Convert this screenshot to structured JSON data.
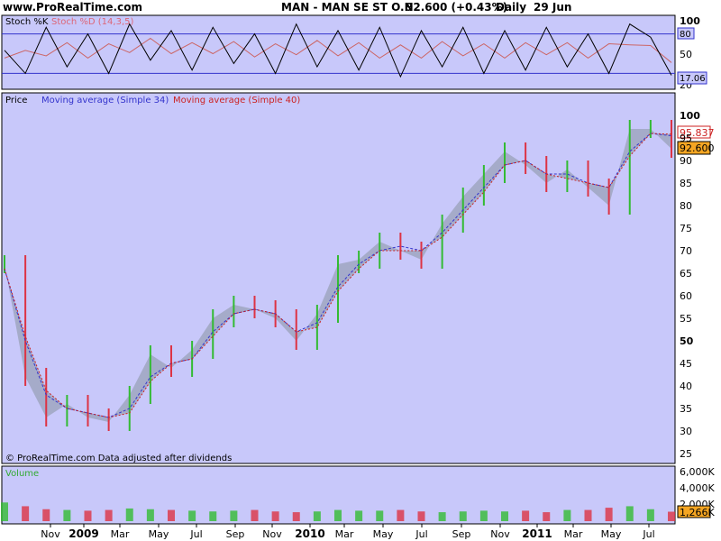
{
  "header": {
    "site": "www.ProRealTime.com",
    "instrument": "MAN - MAN SE ST O.N.",
    "last": "92.600 (+0.43%)",
    "period": "Daily",
    "date": "29 Jun"
  },
  "colors": {
    "panel_bg": "#c8c8fa",
    "up_bar": "#33bb33",
    "down_bar": "#dd3344",
    "ma34": "#3333cc",
    "ma40": "#cc2222",
    "stoch_k": "#000000",
    "stoch_d": "#cc6666",
    "band_line": "#3333cc",
    "volume_label": "#33aa33"
  },
  "stoch_panel": {
    "label_k": "Stoch %K",
    "label_d": "Stoch %D (14,3,5)",
    "ticks": [
      "100",
      "50",
      "20"
    ],
    "band_high": "80",
    "band_low": "20",
    "last_value": "17.06"
  },
  "price_panel": {
    "label_price": "Price",
    "label_ma34": "Moving average (Simple 34)",
    "label_ma40": "Moving average (Simple 40)",
    "ticks": [
      "100",
      "95",
      "90",
      "85",
      "80",
      "75",
      "70",
      "65",
      "60",
      "55",
      "50",
      "45",
      "40",
      "35",
      "30",
      "25"
    ],
    "last_ma": "95.837",
    "last_price": "92.600",
    "footer": "© ProRealTime.com  Data adjusted after dividends"
  },
  "volume_panel": {
    "label": "Volume",
    "ticks": [
      "6,000K",
      "4,000K",
      "2,000K"
    ],
    "last_value": "1,266K"
  },
  "x_axis": [
    "Nov",
    "2009",
    "Mar",
    "May",
    "Jul",
    "Sep",
    "Nov",
    "2010",
    "Mar",
    "May",
    "Jul",
    "Sep",
    "Nov",
    "2011",
    "Mar",
    "May",
    "Jul"
  ],
  "chart_data": [
    {
      "type": "line",
      "title": "Stoch %K / Stoch %D (14,3,5)",
      "ylim": [
        0,
        100
      ],
      "x": [
        "2008-10",
        "2008-11",
        "2008-12",
        "2009-01",
        "2009-02",
        "2009-03",
        "2009-04",
        "2009-05",
        "2009-06",
        "2009-07",
        "2009-08",
        "2009-09",
        "2009-10",
        "2009-11",
        "2009-12",
        "2010-01",
        "2010-02",
        "2010-03",
        "2010-04",
        "2010-05",
        "2010-06",
        "2010-07",
        "2010-08",
        "2010-09",
        "2010-10",
        "2010-11",
        "2010-12",
        "2011-01",
        "2011-02",
        "2011-03",
        "2011-04",
        "2011-05",
        "2011-06"
      ],
      "series": [
        {
          "name": "Stoch %K",
          "values": [
            55,
            20,
            90,
            30,
            80,
            20,
            95,
            40,
            85,
            25,
            90,
            35,
            80,
            20,
            95,
            30,
            85,
            25,
            90,
            15,
            85,
            30,
            90,
            20,
            85,
            25,
            90,
            30,
            80,
            20,
            95,
            75,
            17.06
          ]
        }
      ],
      "reference_lines": [
        80,
        20
      ]
    },
    {
      "type": "line",
      "title": "MAN - MAN SE ST O.N. Daily",
      "ylim": [
        25,
        102
      ],
      "x": [
        "2008-10",
        "2008-11",
        "2008-12",
        "2009-01",
        "2009-02",
        "2009-03",
        "2009-04",
        "2009-05",
        "2009-06",
        "2009-07",
        "2009-08",
        "2009-09",
        "2009-10",
        "2009-11",
        "2009-12",
        "2010-01",
        "2010-02",
        "2010-03",
        "2010-04",
        "2010-05",
        "2010-06",
        "2010-07",
        "2010-08",
        "2010-09",
        "2010-10",
        "2010-11",
        "2010-12",
        "2011-01",
        "2011-02",
        "2011-03",
        "2011-04",
        "2011-05",
        "2011-06"
      ],
      "series": [
        {
          "name": "Price",
          "values": [
            67,
            42,
            33,
            36,
            33,
            32,
            38,
            47,
            44,
            48,
            55,
            58,
            57,
            55,
            50,
            56,
            67,
            68,
            72,
            70,
            68,
            76,
            82,
            87,
            92,
            89,
            85,
            88,
            84,
            80,
            97,
            97,
            92.6
          ]
        },
        {
          "name": "Moving average (Simple 34)",
          "values": [
            66,
            50,
            38,
            35,
            34,
            33,
            35,
            42,
            45,
            46,
            52,
            56,
            57,
            56,
            52,
            54,
            62,
            67,
            70,
            71,
            70,
            74,
            79,
            84,
            89,
            90,
            87,
            87,
            85,
            84,
            92,
            96,
            95.5
          ]
        },
        {
          "name": "Moving average (Simple 40)",
          "values": [
            66,
            51,
            39,
            35,
            34,
            33,
            34,
            41,
            45,
            46,
            51,
            56,
            57,
            56,
            52,
            53,
            61,
            66,
            70,
            70,
            70,
            73,
            78,
            83,
            89,
            90,
            87,
            86,
            85,
            84,
            91,
            96,
            95.837
          ]
        }
      ]
    },
    {
      "type": "bar",
      "title": "Volume",
      "ylim": [
        0,
        7000
      ],
      "unit": "K",
      "categories": [
        "2008-10",
        "2008-11",
        "2008-12",
        "2009-01",
        "2009-02",
        "2009-03",
        "2009-04",
        "2009-05",
        "2009-06",
        "2009-07",
        "2009-08",
        "2009-09",
        "2009-10",
        "2009-11",
        "2009-12",
        "2010-01",
        "2010-02",
        "2010-03",
        "2010-04",
        "2010-05",
        "2010-06",
        "2010-07",
        "2010-08",
        "2010-09",
        "2010-10",
        "2010-11",
        "2010-12",
        "2011-01",
        "2011-02",
        "2011-03",
        "2011-04",
        "2011-05",
        "2011-06"
      ],
      "values": [
        2500,
        2000,
        1600,
        1500,
        1400,
        1500,
        1700,
        1600,
        1500,
        1400,
        1300,
        1400,
        1500,
        1300,
        1200,
        1300,
        1500,
        1400,
        1400,
        1500,
        1300,
        1200,
        1300,
        1400,
        1300,
        1400,
        1200,
        1500,
        1500,
        1800,
        2000,
        1600,
        1266
      ]
    }
  ]
}
